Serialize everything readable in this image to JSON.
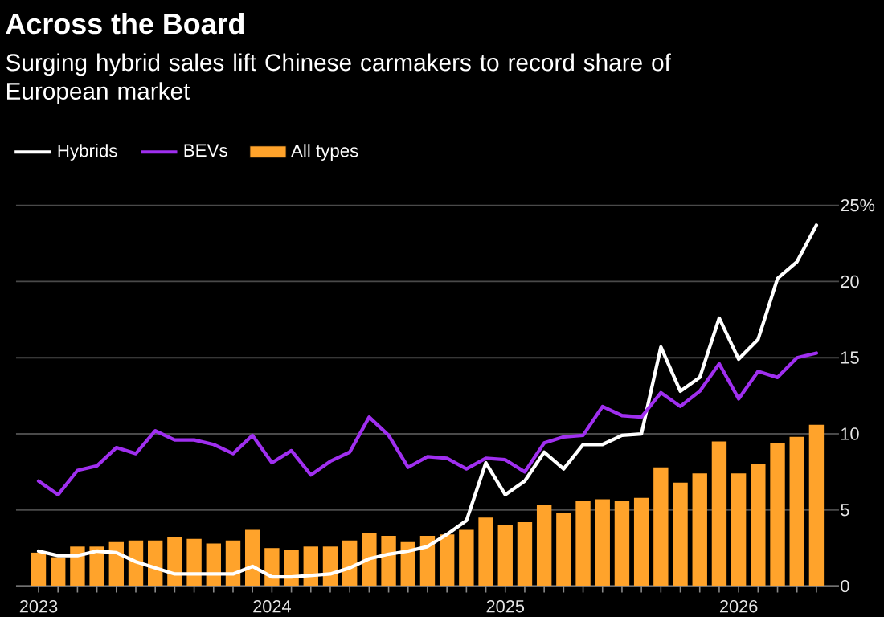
{
  "chart_data": {
    "type": "line",
    "title": "Across the Board",
    "subtitle": "Surging hybrid sales lift Chinese carmakers to record share of European market",
    "categories": [
      "2023",
      null,
      null,
      null,
      null,
      null,
      null,
      null,
      null,
      null,
      null,
      null,
      "2024",
      null,
      null,
      null,
      null,
      null,
      null,
      null,
      null,
      null,
      null,
      null,
      "2025",
      null,
      null,
      null,
      null,
      null,
      null,
      null,
      null,
      null,
      null,
      null,
      "2026",
      null,
      null,
      null,
      null
    ],
    "series": [
      {
        "name": "Hybrids",
        "color": "#ffffff",
        "values": [
          2.3,
          2.0,
          2.0,
          2.3,
          2.2,
          1.6,
          1.2,
          0.8,
          0.8,
          0.8,
          0.8,
          1.3,
          0.6,
          0.6,
          0.7,
          0.8,
          1.2,
          1.8,
          2.1,
          2.3,
          2.6,
          3.4,
          4.3,
          8.1,
          6.0,
          6.9,
          8.8,
          7.7,
          9.3,
          9.3,
          9.9,
          10.0,
          15.7,
          12.8,
          13.7,
          17.6,
          14.9,
          16.2,
          20.2,
          21.3,
          23.7
        ]
      },
      {
        "name": "BEVs",
        "color": "#a02ff0",
        "values": [
          6.9,
          6.0,
          7.6,
          7.9,
          9.1,
          8.7,
          10.2,
          9.6,
          9.6,
          9.3,
          8.7,
          9.9,
          8.1,
          8.9,
          7.3,
          8.2,
          8.8,
          11.1,
          9.9,
          7.8,
          8.5,
          8.4,
          7.7,
          8.4,
          8.3,
          7.5,
          9.4,
          9.8,
          9.9,
          11.8,
          11.2,
          11.1,
          12.7,
          11.8,
          12.8,
          14.6,
          12.3,
          14.1,
          13.7,
          15.0,
          15.3
        ]
      },
      {
        "name": "All types",
        "type": "bar",
        "color": "#ffa32b",
        "values": [
          2.2,
          1.9,
          2.6,
          2.6,
          2.9,
          3.0,
          3.0,
          3.2,
          3.1,
          2.8,
          3.0,
          3.7,
          2.5,
          2.4,
          2.6,
          2.6,
          3.0,
          3.5,
          3.3,
          2.9,
          3.3,
          3.4,
          3.7,
          4.5,
          4.0,
          4.2,
          5.3,
          4.8,
          5.6,
          5.7,
          5.6,
          5.8,
          7.8,
          6.8,
          7.4,
          9.5,
          7.4,
          8.0,
          9.4,
          9.8,
          10.6
        ]
      }
    ],
    "ylim": [
      0,
      25
    ],
    "yticks": [
      0,
      5,
      10,
      15,
      20,
      {
        "value": 25,
        "label": "25%"
      }
    ],
    "grid": "y",
    "legend": "top left"
  }
}
